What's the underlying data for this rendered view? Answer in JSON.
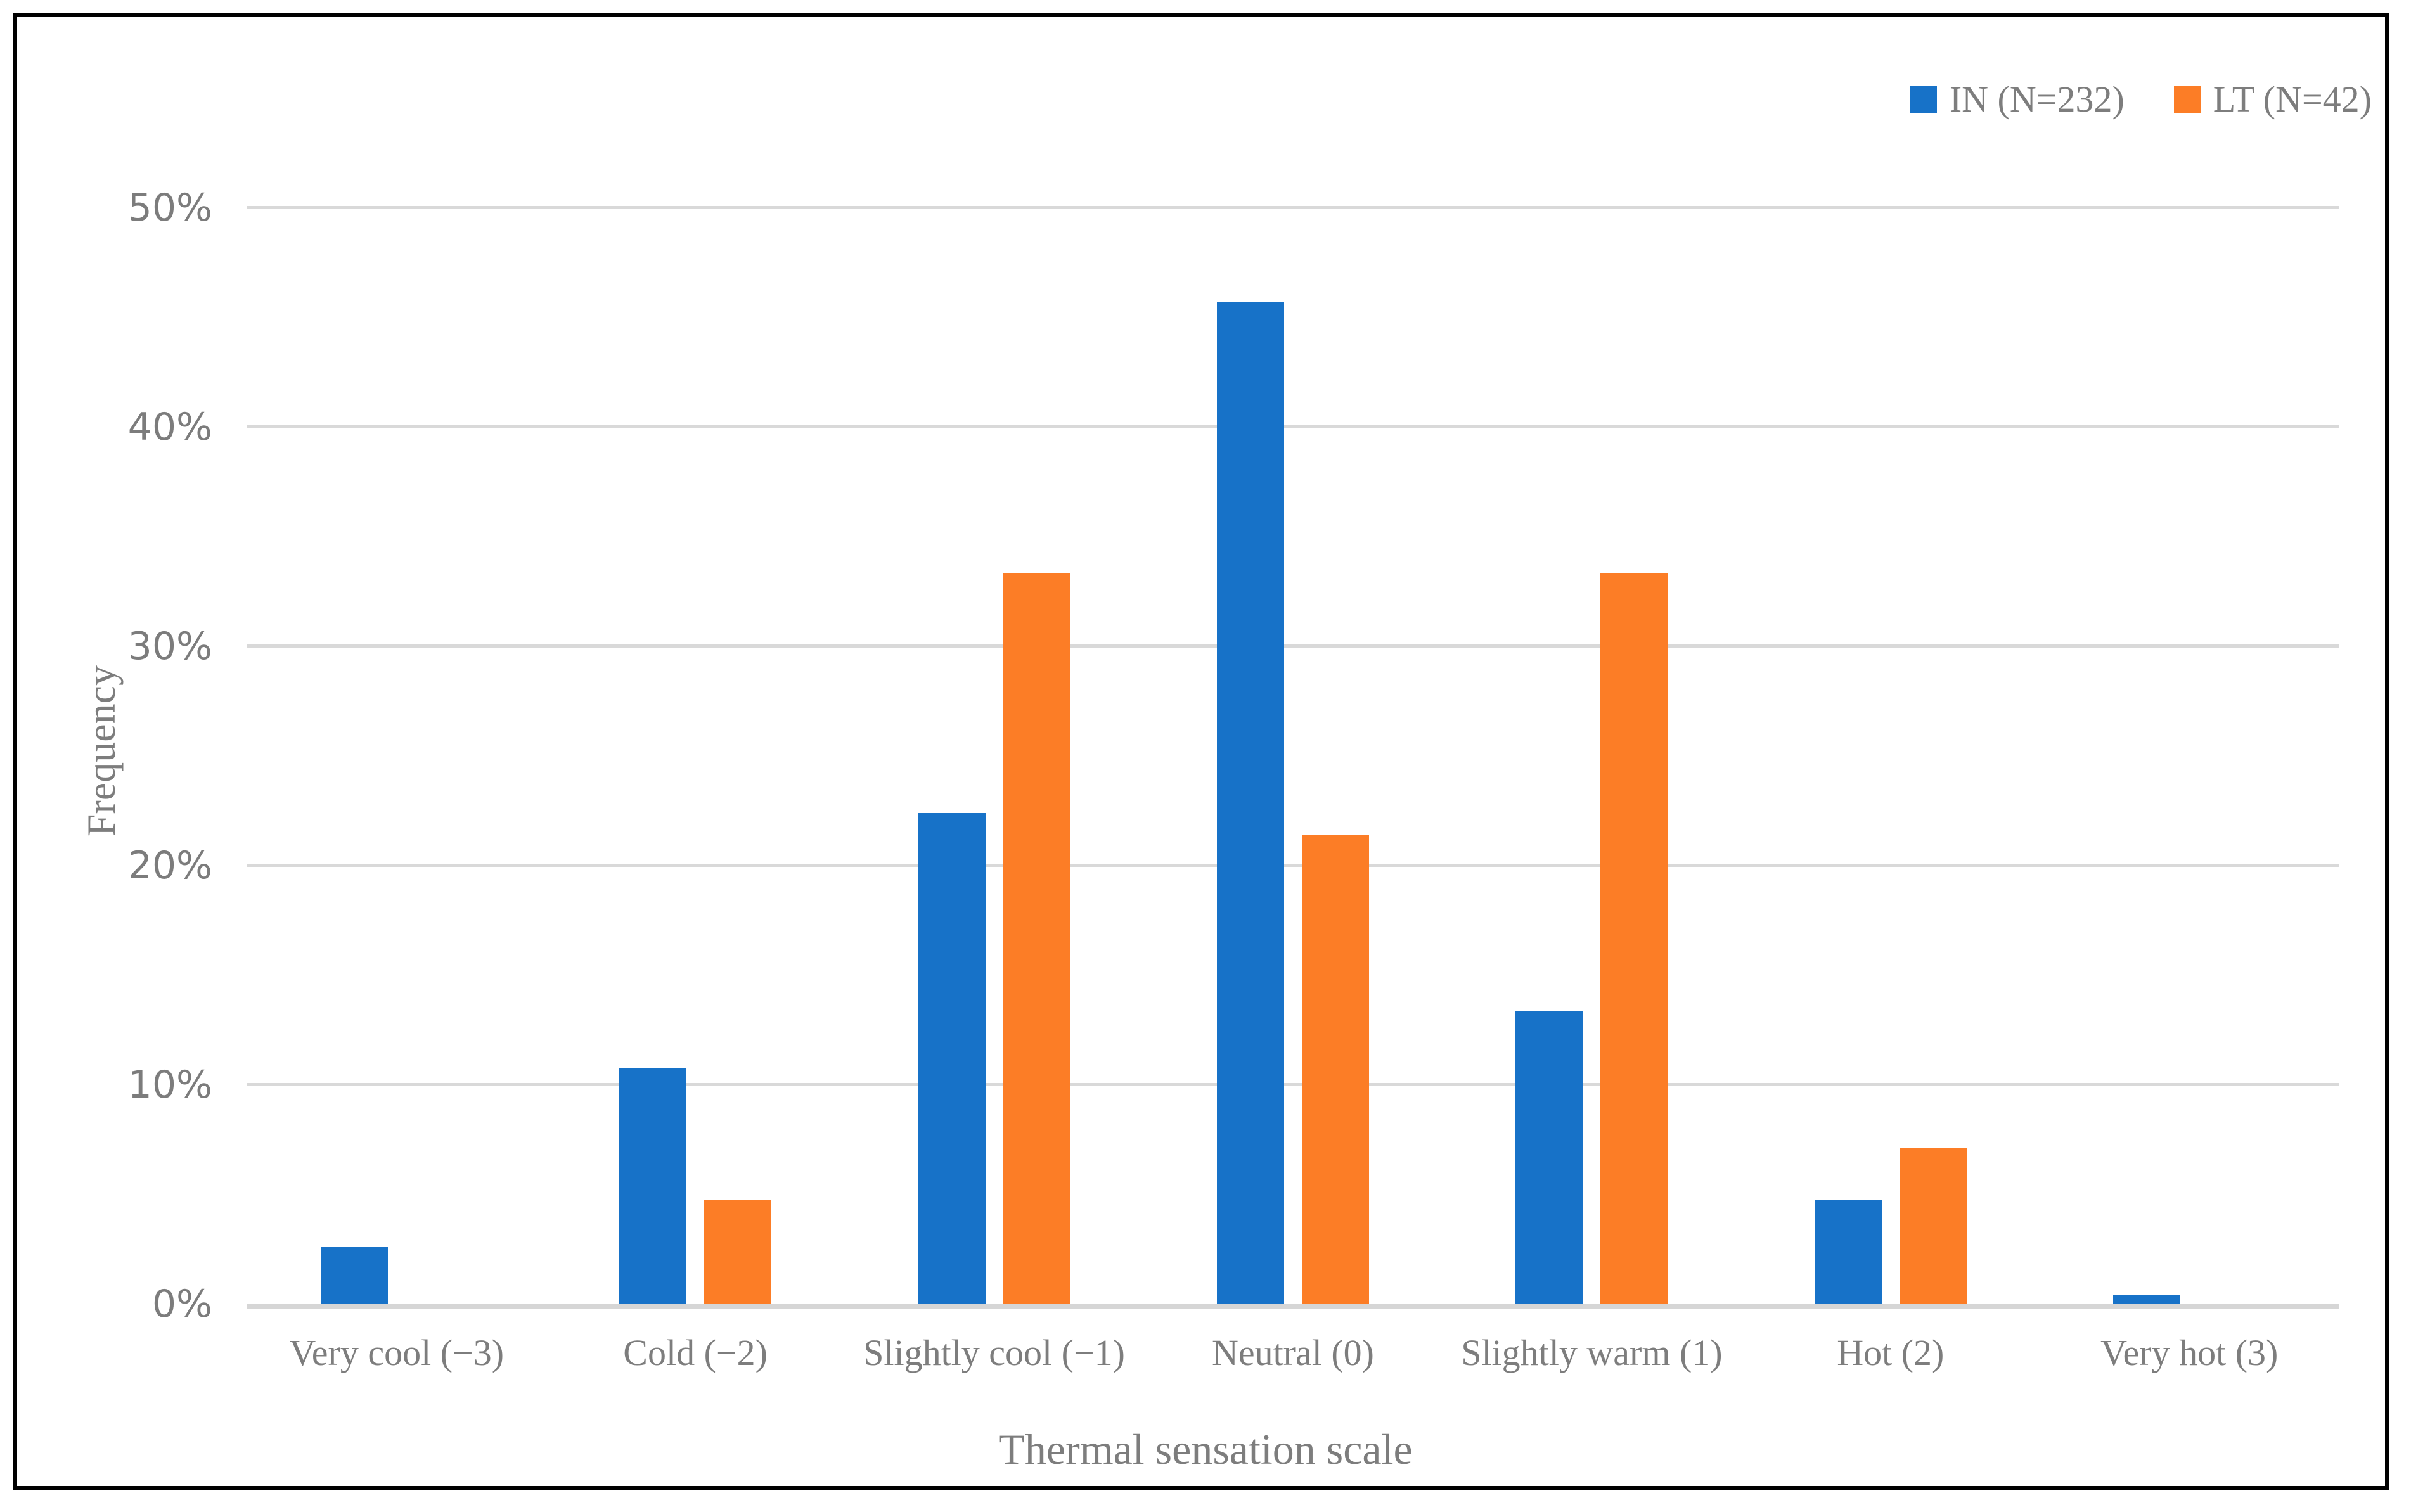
{
  "chart_data": {
    "type": "bar",
    "title": "",
    "xlabel": "Thermal sensation scale",
    "ylabel": "Frequency",
    "categories": [
      "Very cool (−3)",
      "Cold (−2)",
      "Slightly cool (−1)",
      "Neutral (0)",
      "Slightly warm (1)",
      "Hot (2)",
      "Very hot (3)"
    ],
    "series": [
      {
        "name": "IN (N=232)",
        "color": "#1772c8",
        "values": [
          2.59,
          10.78,
          22.41,
          45.69,
          13.36,
          4.74,
          0.43
        ]
      },
      {
        "name": "LT (N=42)",
        "color": "#fc7d26",
        "values": [
          0,
          4.76,
          33.33,
          21.43,
          33.33,
          7.14,
          0
        ]
      }
    ],
    "y_ticks": [
      "0%",
      "10%",
      "20%",
      "30%",
      "40%",
      "50%"
    ],
    "ylim": [
      0,
      50
    ],
    "y_tick_step": 10,
    "grid": "horizontal",
    "gridline_color": "#d9d9d9",
    "legend_position": "top-right",
    "text_color": "#7d7d7d"
  }
}
